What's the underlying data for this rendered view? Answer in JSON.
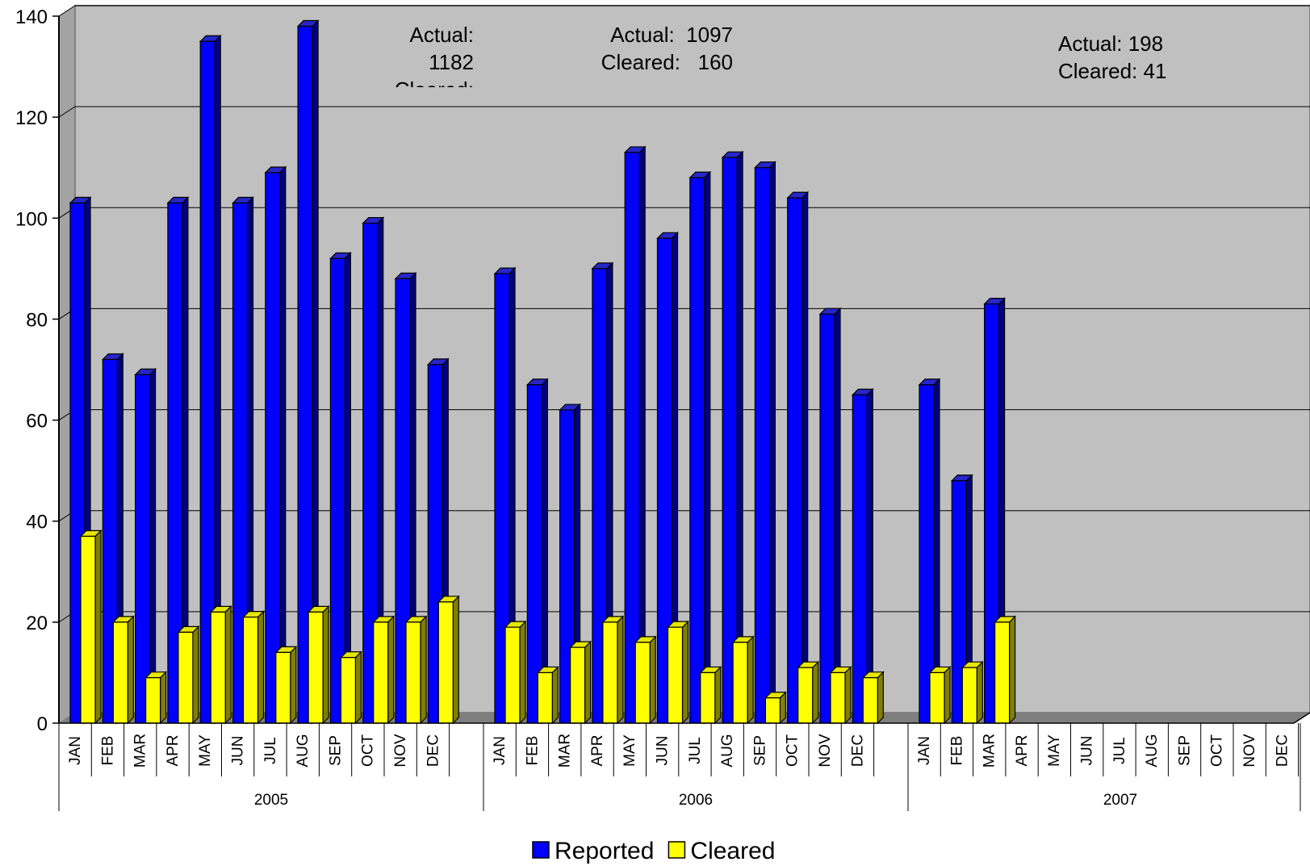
{
  "chart_data": {
    "type": "bar",
    "title": "",
    "xlabel": "",
    "ylabel": "",
    "ylim": [
      0,
      140
    ],
    "yticks": [
      0,
      20,
      40,
      60,
      80,
      100,
      120,
      140
    ],
    "grid": true,
    "legend_position": "bottom",
    "groups": [
      {
        "label": "2005",
        "months": [
          "JAN",
          "FEB",
          "MAR",
          "APR",
          "MAY",
          "JUN",
          "JUL",
          "AUG",
          "SEP",
          "OCT",
          "NOV",
          "DEC"
        ],
        "reported": [
          103,
          72,
          69,
          103,
          135,
          103,
          109,
          138,
          92,
          99,
          88,
          71
        ],
        "cleared": [
          37,
          20,
          9,
          18,
          22,
          21,
          14,
          22,
          13,
          20,
          20,
          24
        ],
        "annotation": [
          "Actual:",
          "1182",
          "Cleared:"
        ]
      },
      {
        "label": "2006",
        "months": [
          "JAN",
          "FEB",
          "MAR",
          "APR",
          "MAY",
          "JUN",
          "JUL",
          "AUG",
          "SEP",
          "OCT",
          "NOV",
          "DEC"
        ],
        "reported": [
          89,
          67,
          62,
          90,
          113,
          96,
          108,
          112,
          110,
          104,
          81,
          65
        ],
        "cleared": [
          19,
          10,
          15,
          20,
          16,
          19,
          10,
          16,
          5,
          11,
          10,
          9
        ],
        "annotation": [
          "Actual:  1097",
          "Cleared:   160"
        ]
      },
      {
        "label": "2007",
        "months": [
          "JAN",
          "FEB",
          "MAR",
          "APR",
          "MAY",
          "JUN",
          "JUL",
          "AUG",
          "SEP",
          "OCT",
          "NOV",
          "DEC"
        ],
        "reported": [
          67,
          48,
          83,
          null,
          null,
          null,
          null,
          null,
          null,
          null,
          null,
          null
        ],
        "cleared": [
          10,
          11,
          20,
          null,
          null,
          null,
          null,
          null,
          null,
          null,
          null,
          null
        ],
        "annotation": [
          "Actual: 198",
          "Cleared: 41"
        ]
      }
    ],
    "series": [
      {
        "name": "Reported",
        "color": "#0000ff"
      },
      {
        "name": "Cleared",
        "color": "#ffff00"
      }
    ]
  }
}
